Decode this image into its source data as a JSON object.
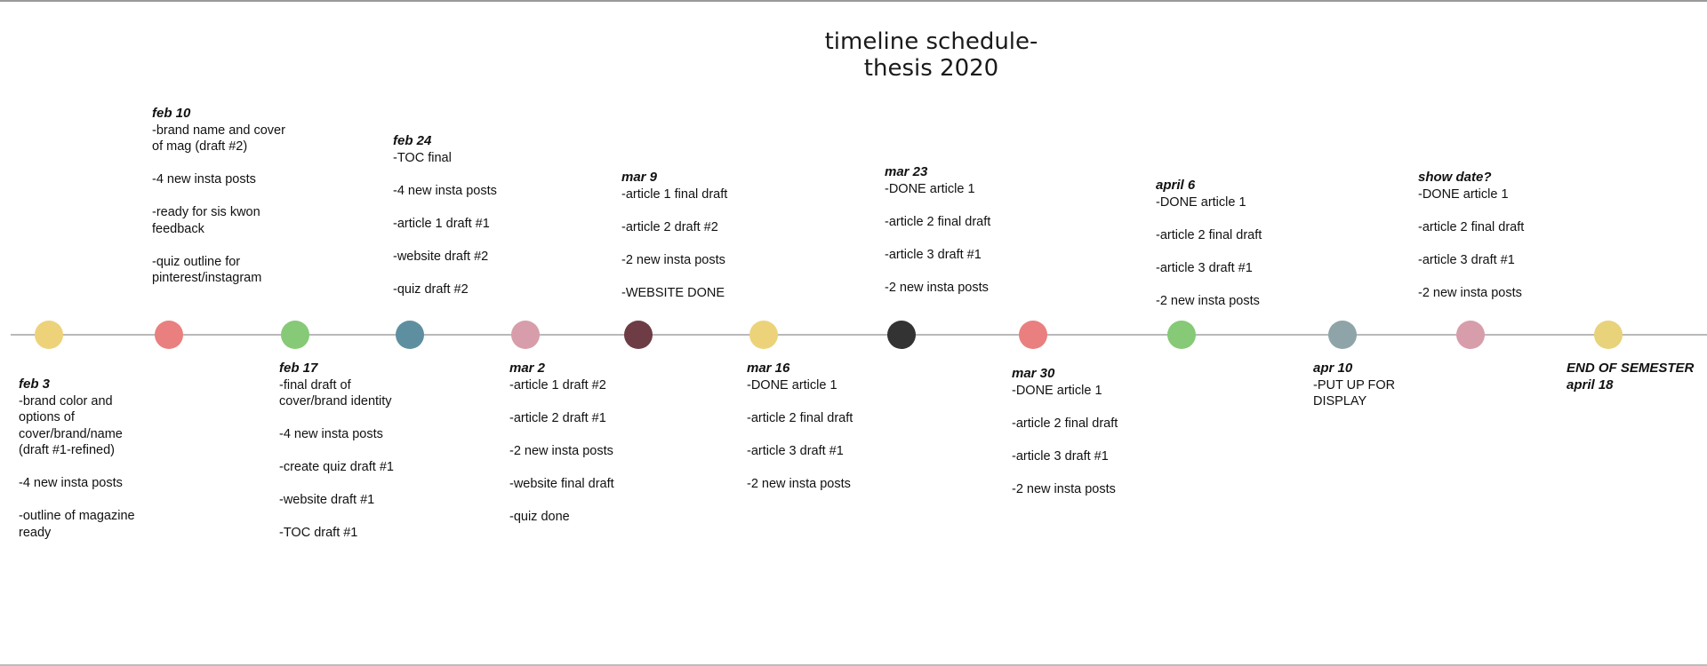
{
  "title": {
    "line1": "timeline schedule-",
    "line2": "thesis 2020"
  },
  "milestones": [
    {
      "color": "#edd27a",
      "date": "feb 3",
      "items": [
        "-brand color and options of cover/brand/name (draft #1-refined)",
        "-4 new insta posts",
        "-outline of magazine ready"
      ]
    },
    {
      "color": "#ea7f7f",
      "date": "feb 10",
      "items": [
        "-brand name and cover of mag (draft #2)",
        "-4 new insta posts",
        "-ready for sis kwon feedback",
        "-quiz outline for pinterest/instagram"
      ]
    },
    {
      "color": "#86c977",
      "date": "feb 17",
      "items": [
        "-final draft of cover/brand identity",
        "-4 new insta posts",
        "-create quiz draft #1",
        "-website draft #1",
        "-TOC draft #1"
      ]
    },
    {
      "color": "#5e8fa0",
      "date": "feb 24",
      "items": [
        "-TOC final",
        "-4 new insta posts",
        "-article 1 draft #1",
        "-website draft #2",
        "-quiz draft #2"
      ]
    },
    {
      "color": "#d89daa",
      "date": "mar 2",
      "items": [
        "-article 1 draft #2",
        "-article 2 draft #1",
        "-2 new insta posts",
        "-website final draft",
        "-quiz done"
      ]
    },
    {
      "color": "#6e3c45",
      "date": "mar 9",
      "items": [
        "-article 1 final draft",
        "-article 2 draft #2",
        "-2 new insta posts",
        "-WEBSITE DONE"
      ]
    },
    {
      "color": "#ecd37a",
      "date": "mar 16",
      "items": [
        "-DONE article 1",
        "-article 2 final draft",
        "-article 3 draft #1",
        "-2 new insta posts"
      ]
    },
    {
      "color": "#333333",
      "date": "mar 23",
      "items": [
        "-DONE article 1",
        "-article 2 final draft",
        "-article 3 draft #1",
        "-2 new insta posts"
      ]
    },
    {
      "color": "#ea7f7f",
      "date": "mar 30",
      "items": [
        "-DONE article 1",
        "-article 2 final draft",
        "-article 3 draft #1",
        "-2 new insta posts"
      ]
    },
    {
      "color": "#86c977",
      "date": "april 6",
      "items": [
        "-DONE article 1",
        "-article 2 final draft",
        "-article 3 draft #1",
        "-2 new insta posts"
      ]
    },
    {
      "color": "#8ea4a8",
      "date": "apr 10",
      "items": [
        "-PUT UP FOR DISPLAY"
      ]
    },
    {
      "color": "#d89daa",
      "date": "show date?",
      "items": [
        "-DONE article 1",
        "-article 2 final draft",
        "-article 3 draft #1",
        "-2 new insta posts"
      ]
    },
    {
      "color": "#e8d27a",
      "date": "END OF SEMESTER\napril 18",
      "items": []
    }
  ]
}
